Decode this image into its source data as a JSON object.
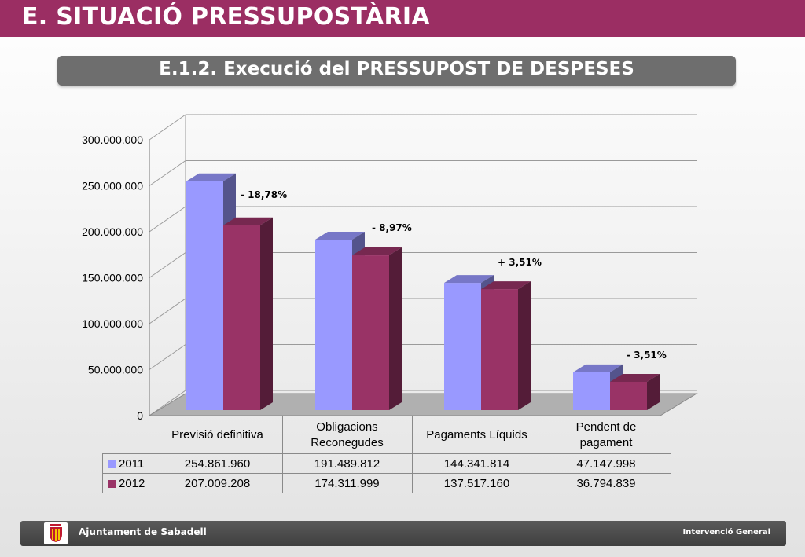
{
  "header": {
    "title": "E. SITUACIÓ PRESSUPOSTÀRIA",
    "subtitle": "E.1.2. Execució del PRESSUPOST DE DESPESES"
  },
  "chart_data": {
    "type": "bar",
    "categories": [
      "Previsió definitiva",
      "Obligacions Reconegudes",
      "Pagaments Líquids",
      "Pendent de pagament"
    ],
    "category_lines": [
      [
        "Previsió definitiva"
      ],
      [
        "Obligacions",
        "Reconegudes"
      ],
      [
        "Pagaments Líquids"
      ],
      [
        "Pendent de",
        "pagament"
      ]
    ],
    "series": [
      {
        "name": "2011",
        "values": [
          254861960,
          191489812,
          144341814,
          47147998
        ],
        "labels": [
          "254.861.960",
          "191.489.812",
          "144.341.814",
          "47.147.998"
        ],
        "color": "#9999ff"
      },
      {
        "name": "2012",
        "values": [
          207009208,
          174311999,
          137517160,
          36794839
        ],
        "labels": [
          "207.009.208",
          "174.311.999",
          "137.517.160",
          "36.794.839"
        ],
        "color": "#993366"
      }
    ],
    "annotations": [
      "- 18,78%",
      "- 8,97%",
      "+ 3,51%",
      "- 3,51%"
    ],
    "y_ticks": [
      0,
      50000000,
      100000000,
      150000000,
      200000000,
      250000000,
      300000000
    ],
    "y_tick_labels": [
      "0",
      "50.000.000",
      "100.000.000",
      "150.000.000",
      "200.000.000",
      "250.000.000",
      "300.000.000"
    ],
    "ylim": [
      0,
      300000000
    ],
    "grid": true,
    "legend": "data-table",
    "style": "3d-clustered-column"
  },
  "footer": {
    "left": "Ajuntament de Sabadell",
    "right": "Intervenció General"
  }
}
